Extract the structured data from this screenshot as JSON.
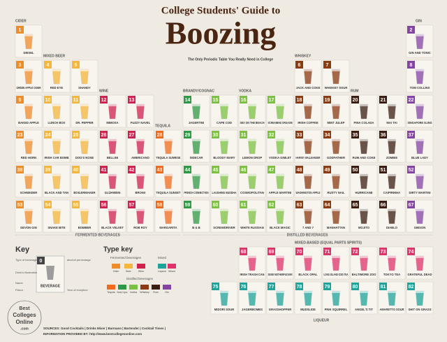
{
  "header": {
    "title": "College Students' Guide to",
    "big_title": "Boozing",
    "subtitle": "The Only Periodic Table You Really Need in College"
  },
  "elements": [
    {
      "number": 1,
      "name": "DIESEL"
    },
    {
      "number": 2,
      "name": "GIN AND TONIC"
    },
    {
      "number": 3,
      "name": "GREEN APPLE CIDER"
    },
    {
      "number": 4,
      "name": "RED EYE"
    },
    {
      "number": 5,
      "name": "SHANDY"
    },
    {
      "number": 6,
      "name": "JACK AND COKE"
    },
    {
      "number": 7,
      "name": "WHISKEY SOUR"
    },
    {
      "number": 8,
      "name": "TOM COLLINS"
    },
    {
      "number": 9,
      "name": "BAKED APPLE"
    },
    {
      "number": 10,
      "name": "LUNCH BOX"
    },
    {
      "number": 11,
      "name": "DR. PEPPER"
    },
    {
      "number": 12,
      "name": "MIMOSA"
    },
    {
      "number": 13,
      "name": "FUZZY NAVEL"
    },
    {
      "number": 14,
      "name": "JAGERTINI"
    },
    {
      "number": 15,
      "name": "CAPE COD"
    },
    {
      "number": 16,
      "name": "SEX ON THE BEACH"
    },
    {
      "number": 17,
      "name": "SCREAMING ORGASM"
    },
    {
      "number": 18,
      "name": "IRISH COFFEE"
    },
    {
      "number": 19,
      "name": "MINT JULEP"
    },
    {
      "number": 20,
      "name": "PINA COLADA"
    },
    {
      "number": 21,
      "name": "MAI TAI"
    },
    {
      "number": 22,
      "name": "SINGAPORE SLING"
    },
    {
      "number": 23,
      "name": "RED HORN"
    },
    {
      "number": 24,
      "name": "IRISH CAR BOMB"
    },
    {
      "number": 25,
      "name": "DOG'S NOSE"
    },
    {
      "number": 26,
      "name": "BELLINI"
    },
    {
      "number": 27,
      "name": "AMERICANO"
    },
    {
      "number": 28,
      "name": "TEQUILA SUNRISE"
    },
    {
      "number": 29,
      "name": "SIDECAR"
    },
    {
      "number": 30,
      "name": "BLOODY MARY"
    },
    {
      "number": 31,
      "name": "LEMON DROP"
    },
    {
      "number": 32,
      "name": "VODKA GIMLET"
    },
    {
      "number": 33,
      "name": "HARVEY WALLBANGER"
    },
    {
      "number": 34,
      "name": "GODFATHER"
    },
    {
      "number": 35,
      "name": "RUM AND COKE"
    },
    {
      "number": 36,
      "name": "ZOMBIE"
    },
    {
      "number": 37,
      "name": "BLUE LADY"
    },
    {
      "number": 38,
      "name": "SCHNEIDER"
    },
    {
      "number": 39,
      "name": "BLACK AND TAN"
    },
    {
      "number": 40,
      "name": "BOILERMAKER"
    },
    {
      "number": 41,
      "name": "GLÜHWEIN"
    },
    {
      "number": 42,
      "name": "BRONX"
    },
    {
      "number": 43,
      "name": "TEQUILA SUNSET"
    },
    {
      "number": 44,
      "name": "FRENCH CONNECTION"
    },
    {
      "number": 45,
      "name": "LAUGHING BUDDHA"
    },
    {
      "number": 46,
      "name": "COSMOPOLITAN"
    },
    {
      "number": 47,
      "name": "APPLE MARTINI"
    },
    {
      "number": 48,
      "name": "WASHINGTON APPLE"
    },
    {
      "number": 49,
      "name": "RUSTY NAIL"
    },
    {
      "number": 50,
      "name": "HURRICANE"
    },
    {
      "number": 51,
      "name": "CAIPIRINHA"
    },
    {
      "number": 52,
      "name": "DIRTY MARTINI"
    },
    {
      "number": 53,
      "name": "DEVON GIN"
    },
    {
      "number": 54,
      "name": "SNAKE BITE"
    },
    {
      "number": 55,
      "name": "BOMBER"
    },
    {
      "number": 56,
      "name": "BLACK VELVET"
    },
    {
      "number": 57,
      "name": "ROB ROY"
    },
    {
      "number": 58,
      "name": "MARGARITA"
    },
    {
      "number": 59,
      "name": "B & B"
    },
    {
      "number": 60,
      "name": "SCREWDRIVER"
    },
    {
      "number": 61,
      "name": "WHITE RUSSIAN"
    },
    {
      "number": 62,
      "name": "BLACK MAGIC"
    },
    {
      "number": 63,
      "name": "7 AND 7"
    },
    {
      "number": 64,
      "name": "MANHATTAN"
    },
    {
      "number": 65,
      "name": "MOJITO"
    },
    {
      "number": 66,
      "name": "DIABLO"
    },
    {
      "number": 67,
      "name": "GIBSON"
    },
    {
      "number": 68,
      "name": "IRISH TRASH CAN"
    },
    {
      "number": 69,
      "name": "SEXIE MOTHERFUCKER"
    },
    {
      "number": 70,
      "name": "BLACK OPAL"
    },
    {
      "number": 71,
      "name": "LONG ISLAND ICED TEA"
    },
    {
      "number": 72,
      "name": "BALTIMORE ZOO"
    },
    {
      "number": 73,
      "name": "TOKYO TEA"
    },
    {
      "number": 74,
      "name": "GRATEFUL DEAD"
    },
    {
      "number": 75,
      "name": "MIDORI SOUR"
    },
    {
      "number": 76,
      "name": "JAGERBOMBS"
    },
    {
      "number": 77,
      "name": "GRASSHOPPER"
    },
    {
      "number": 78,
      "name": "MUDSLIDE"
    },
    {
      "number": 79,
      "name": "PINK SQUIRREL"
    },
    {
      "number": 80,
      "name": "ANGEL'S TIT"
    },
    {
      "number": 81,
      "name": "AMARETTO SOUR"
    },
    {
      "number": 82,
      "name": "SHIT ON GRASS"
    }
  ],
  "group_labels": [
    "CIDER",
    "MIXED BEER",
    "WINE",
    "TEQUILA",
    "BRANDY/COGNAC",
    "VODKA",
    "WHISKEY",
    "RUM",
    "GIN",
    "FERMENTED BEVERAGES",
    "DISTILLED BEVERAGES",
    "MIXED-BASED (EQUAL PARTS SPIRITS)",
    "LIQUEUR"
  ],
  "key": {
    "heading": "Key",
    "number": 0,
    "name": "BEVERAGE",
    "callouts": [
      "Type of beverage",
      "Drink's illustration",
      "Name",
      "Flavor",
      "alcohol percentage",
      "Year of inception"
    ]
  },
  "type_key": {
    "heading": "Type key",
    "subheads": [
      "Fermented beverages",
      "Mixed",
      "Distilled beverages"
    ],
    "items": [
      {
        "label": "Cider",
        "color": "#ef8c2a"
      },
      {
        "label": "Beer",
        "color": "#f4b63c"
      },
      {
        "label": "Wine",
        "color": "#d1224f"
      },
      {
        "label": "Liqueur",
        "color": "#1ea39b"
      },
      {
        "label": "Mixed",
        "color": "#e0336b"
      },
      {
        "label": "Tequila",
        "color": "#f26b1d"
      },
      {
        "label": "Brandy/ Cognac",
        "color": "#2f9a45"
      },
      {
        "label": "Vodka",
        "color": "#7dc142"
      },
      {
        "label": "Whiskey",
        "color": "#8a3b12"
      },
      {
        "label": "Rum",
        "color": "#3b1d12"
      },
      {
        "label": "Gin",
        "color": "#8544a3"
      }
    ]
  },
  "logo": [
    "Best",
    "Colleges",
    "Online",
    ".com"
  ],
  "sources": [
    "SOURCES: Good Cocktails | Drinks Mixer | Barmano | Bartender | Cocktail Times |",
    "INFORMATION PROVIDED BY: http://www.bestcollegesonline.com"
  ]
}
